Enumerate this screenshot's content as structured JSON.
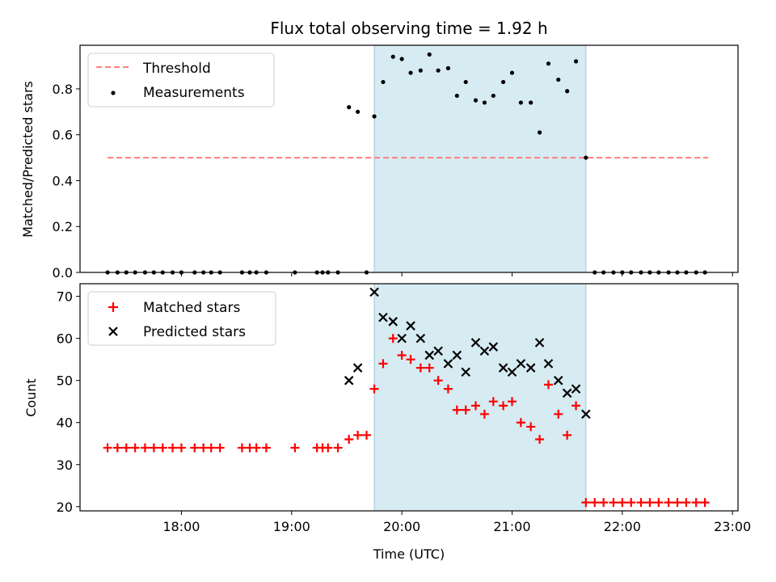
{
  "chart_data": {
    "type": "scatter",
    "title": "Flux total observing time = 1.92 h",
    "x_tick_labels": [
      "18:00",
      "19:00",
      "20:00",
      "21:00",
      "22:00",
      "23:00"
    ],
    "x_tick_hours": [
      18,
      19,
      20,
      21,
      22,
      23
    ],
    "xlabel": "Time (UTC)",
    "xlim_hours": [
      17.08,
      23.05
    ],
    "shaded_interval_hours": [
      19.75,
      21.67
    ],
    "shade_color": "#add8e6",
    "top_panel": {
      "ylabel": "Matched/Predicted stars",
      "ylim": [
        0,
        0.99
      ],
      "y_ticks": [
        0.0,
        0.2,
        0.4,
        0.6,
        0.8
      ],
      "y_tick_labels": [
        "0.0",
        "0.2",
        "0.4",
        "0.6",
        "0.8"
      ],
      "threshold": {
        "name": "Threshold",
        "value": 0.5,
        "x_range_hours": [
          17.33,
          22.78
        ],
        "color": "#ff7f7f"
      },
      "measurements": {
        "name": "Measurements",
        "color": "#000000",
        "x_hours": [
          17.33,
          17.42,
          17.5,
          17.58,
          17.67,
          17.75,
          17.83,
          17.92,
          18.0,
          18.12,
          18.2,
          18.27,
          18.35,
          18.55,
          18.62,
          18.68,
          18.77,
          19.03,
          19.23,
          19.28,
          19.33,
          19.42,
          19.68,
          19.52,
          19.6,
          19.75,
          19.83,
          19.92,
          20.0,
          20.08,
          20.17,
          20.25,
          20.33,
          20.42,
          20.5,
          20.58,
          20.67,
          20.75,
          20.83,
          20.92,
          21.0,
          21.08,
          21.17,
          21.25,
          21.33,
          21.42,
          21.5,
          21.58,
          21.67,
          21.75,
          21.83,
          21.92,
          22.0,
          22.08,
          22.17,
          22.25,
          22.33,
          22.42,
          22.5,
          22.58,
          22.67,
          22.75
        ],
        "y": [
          0,
          0,
          0,
          0,
          0,
          0,
          0,
          0,
          0,
          0,
          0,
          0,
          0,
          0,
          0,
          0,
          0,
          0,
          0,
          0,
          0,
          0,
          0,
          0.72,
          0.7,
          0.68,
          0.83,
          0.94,
          0.93,
          0.87,
          0.88,
          0.95,
          0.88,
          0.89,
          0.77,
          0.83,
          0.75,
          0.74,
          0.77,
          0.83,
          0.87,
          0.74,
          0.74,
          0.61,
          0.91,
          0.84,
          0.79,
          0.92,
          0.5,
          0,
          0,
          0,
          0,
          0,
          0,
          0,
          0,
          0,
          0,
          0,
          0,
          0
        ]
      }
    },
    "bottom_panel": {
      "ylabel": "Count",
      "ylim": [
        19,
        73
      ],
      "y_ticks": [
        20,
        30,
        40,
        50,
        60,
        70
      ],
      "y_tick_labels": [
        "20",
        "30",
        "40",
        "50",
        "60",
        "70"
      ],
      "matched": {
        "name": "Matched stars",
        "color": "#ff0000",
        "x_hours": [
          17.33,
          17.42,
          17.5,
          17.58,
          17.67,
          17.75,
          17.83,
          17.92,
          18.0,
          18.12,
          18.2,
          18.27,
          18.35,
          18.55,
          18.62,
          18.68,
          18.77,
          19.03,
          19.23,
          19.28,
          19.33,
          19.42,
          19.52,
          19.6,
          19.68,
          19.75,
          19.83,
          19.92,
          20.0,
          20.08,
          20.17,
          20.25,
          20.33,
          20.42,
          20.5,
          20.58,
          20.67,
          20.75,
          20.83,
          20.92,
          21.0,
          21.08,
          21.17,
          21.25,
          21.33,
          21.42,
          21.5,
          21.58,
          21.67,
          21.75,
          21.83,
          21.92,
          22.0,
          22.08,
          22.17,
          22.25,
          22.33,
          22.42,
          22.5,
          22.58,
          22.67,
          22.75
        ],
        "y": [
          34,
          34,
          34,
          34,
          34,
          34,
          34,
          34,
          34,
          34,
          34,
          34,
          34,
          34,
          34,
          34,
          34,
          34,
          34,
          34,
          34,
          34,
          36,
          37,
          37,
          48,
          54,
          60,
          56,
          55,
          53,
          53,
          50,
          48,
          43,
          43,
          44,
          42,
          45,
          44,
          45,
          40,
          39,
          36,
          49,
          42,
          37,
          44,
          21,
          21,
          21,
          21,
          21,
          21,
          21,
          21,
          21,
          21,
          21,
          21,
          21,
          21
        ]
      },
      "predicted": {
        "name": "Predicted stars",
        "color": "#000000",
        "x_hours": [
          19.52,
          19.6,
          19.75,
          19.83,
          19.92,
          20.0,
          20.08,
          20.17,
          20.25,
          20.33,
          20.42,
          20.5,
          20.58,
          20.67,
          20.75,
          20.83,
          20.92,
          21.0,
          21.08,
          21.17,
          21.25,
          21.33,
          21.42,
          21.5,
          21.58,
          21.67
        ],
        "y": [
          50,
          53,
          71,
          65,
          64,
          60,
          63,
          60,
          56,
          57,
          54,
          56,
          52,
          59,
          57,
          58,
          53,
          52,
          54,
          53,
          59,
          54,
          50,
          47,
          48,
          42
        ]
      }
    }
  }
}
